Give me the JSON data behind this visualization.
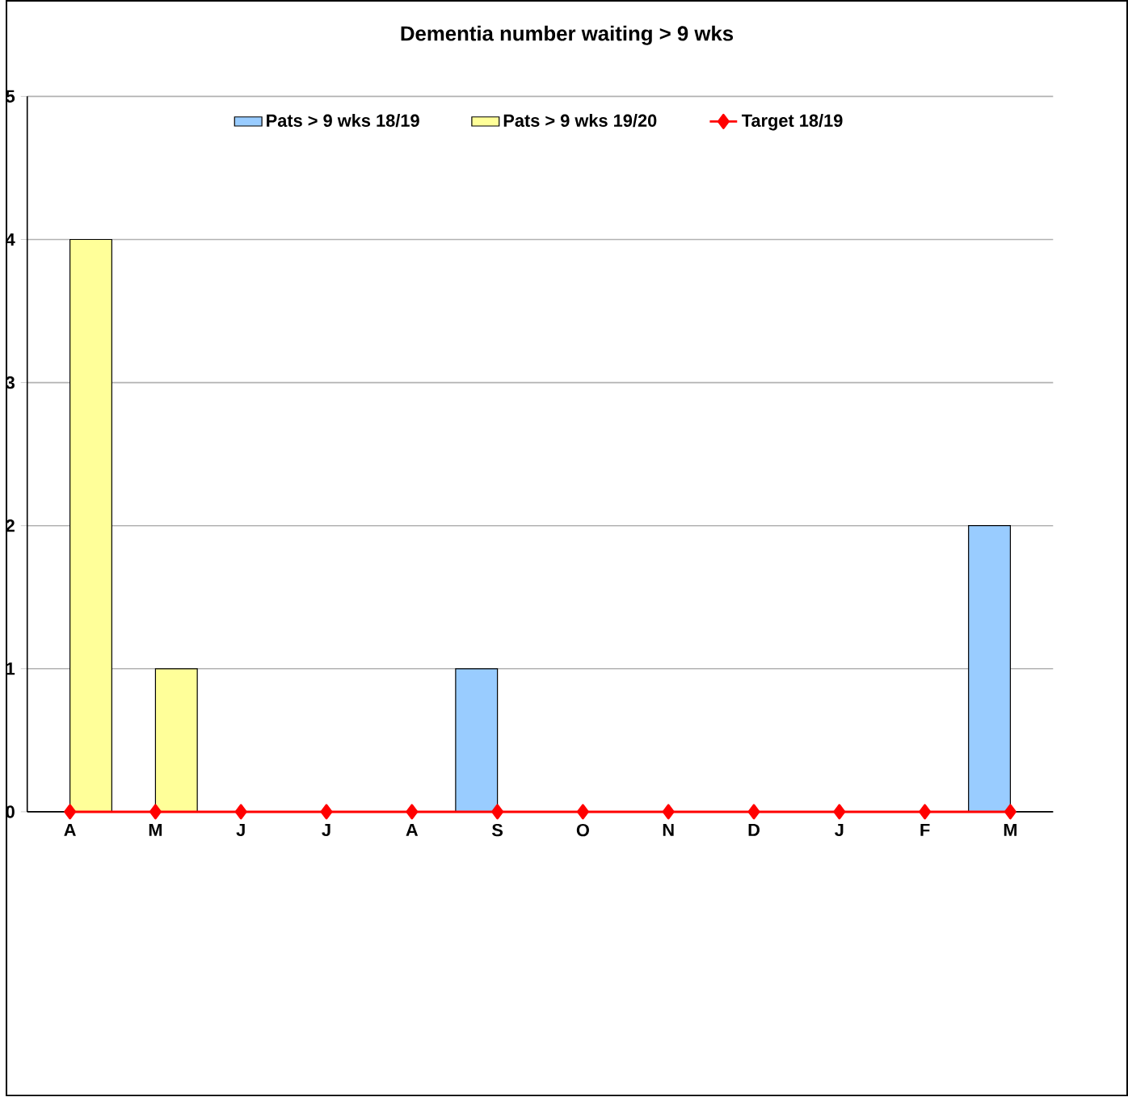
{
  "chart_data": {
    "type": "bar",
    "title": "Dementia  number waiting > 9 wks",
    "categories": [
      "A",
      "M",
      "J",
      "J",
      "A",
      "S",
      "O",
      "N",
      "D",
      "J",
      "F",
      "M"
    ],
    "series": [
      {
        "name": "Pats > 9 wks 18/19",
        "color": "#99ccff",
        "values": [
          null,
          null,
          null,
          null,
          null,
          1,
          null,
          null,
          null,
          null,
          null,
          2
        ]
      },
      {
        "name": "Pats > 9 wks 19/20",
        "color": "#ffff99",
        "values": [
          4,
          1,
          null,
          null,
          null,
          null,
          null,
          null,
          null,
          null,
          null,
          null
        ]
      },
      {
        "name": "Target 18/19",
        "color": "#ff0000",
        "type": "line",
        "marker": "diamond",
        "values": [
          0,
          0,
          0,
          0,
          0,
          0,
          0,
          0,
          0,
          0,
          0,
          0
        ]
      }
    ],
    "ylim": [
      0,
      5
    ],
    "yticks": [
      0,
      1,
      2,
      3,
      4,
      5
    ],
    "grid": "y",
    "legend": "top"
  }
}
